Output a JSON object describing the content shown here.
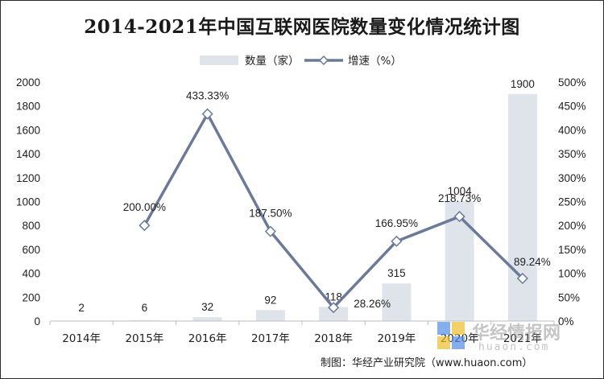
{
  "chart_data": {
    "type": "bar+line",
    "title": "2014-2021年中国互联网医院数量变化情况统计图",
    "categories": [
      "2014年",
      "2015年",
      "2016年",
      "2017年",
      "2018年",
      "2019年",
      "2020年",
      "2021年"
    ],
    "series": [
      {
        "name": "数量（家）",
        "type": "bar",
        "axis": "left",
        "color": "#dfe3ea",
        "values": [
          2,
          6,
          32,
          92,
          118,
          315,
          1004,
          1900
        ],
        "labels": [
          "2",
          "6",
          "32",
          "92",
          "118",
          "315",
          "1004",
          "1900"
        ]
      },
      {
        "name": "增速（%）",
        "type": "line",
        "axis": "right",
        "color": "#6b7a99",
        "values": [
          null,
          200.0,
          433.33,
          187.5,
          28.26,
          166.95,
          218.73,
          89.24
        ],
        "labels": [
          "",
          "200.00%",
          "433.33%",
          "187.50%",
          "28.26%",
          "166.95%",
          "218.73%",
          "89.24%"
        ]
      }
    ],
    "y_left": {
      "min": 0,
      "max": 2000,
      "ticks": [
        "0",
        "200",
        "400",
        "600",
        "800",
        "1000",
        "1200",
        "1400",
        "1600",
        "1800",
        "2000"
      ]
    },
    "y_right": {
      "min": 0,
      "max": 500,
      "ticks": [
        "0%",
        "50%",
        "100%",
        "150%",
        "200%",
        "250%",
        "300%",
        "350%",
        "400%",
        "450%",
        "500%"
      ]
    },
    "grid": false,
    "legend": "top-center"
  },
  "legend": {
    "bar_label": "数量（家）",
    "line_label": "增速（%）"
  },
  "footer": "制图：华经产业研究院（www.huaon.com）",
  "watermark": {
    "main": "华经情报网",
    "sub": "huaon.com"
  }
}
